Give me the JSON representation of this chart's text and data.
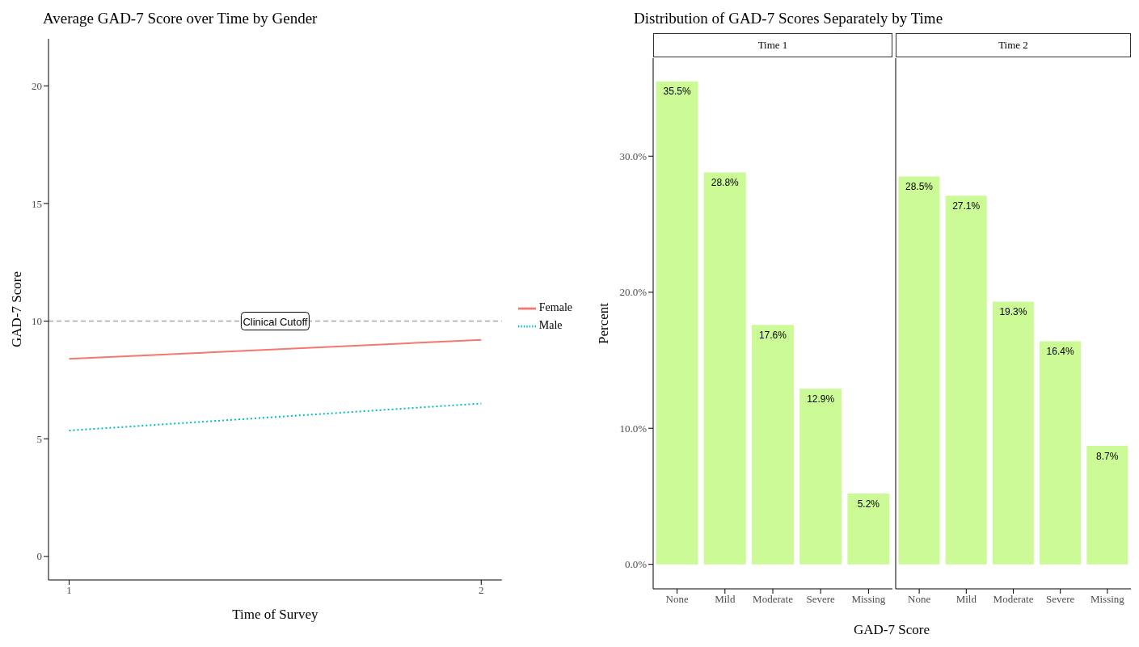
{
  "chart_data": [
    {
      "type": "line",
      "title": "Average GAD-7 Score over Time by Gender",
      "xlabel": "Time of Survey",
      "ylabel": "GAD-7 Score",
      "x": [
        1,
        2
      ],
      "series": [
        {
          "name": "Female",
          "color": "#f8766d",
          "values": [
            8.4,
            9.2
          ],
          "line_style": "solid"
        },
        {
          "name": "Male",
          "color": "#00bfc4",
          "values": [
            5.35,
            6.5
          ],
          "line_style": "dotted"
        }
      ],
      "xlim": [
        0.95,
        2.05
      ],
      "xticks": [
        1,
        2
      ],
      "ylim": [
        -1,
        22
      ],
      "yticks": [
        0,
        5,
        10,
        15,
        20
      ],
      "ref_lines": [
        {
          "axis": "y",
          "value": 10,
          "label": "Clinical Cutoff",
          "color": "#a6a6a6",
          "line_style": "dashed"
        }
      ],
      "grid": false,
      "legend": "right",
      "marker": "none"
    },
    {
      "type": "bar",
      "title": "Distribution of GAD-7 Scores Separately by Time",
      "subtitle": "Time 1",
      "xlabel": "GAD-7 Score",
      "ylabel": "Percent",
      "categories": [
        "None",
        "Mild",
        "Moderate",
        "Severe",
        "Missing"
      ],
      "values": [
        35.5,
        28.8,
        17.6,
        12.9,
        5.2
      ],
      "color": "#ccfa96",
      "value_labels": [
        "35.5%",
        "28.8%",
        "17.6%",
        "12.9%",
        "5.2%"
      ],
      "ylim": [
        -1.8,
        37.2
      ],
      "yticks": [
        {
          "value": 0,
          "label": "0.0%"
        },
        {
          "value": 10,
          "label": "10.0%"
        },
        {
          "value": 20,
          "label": "20.0%"
        },
        {
          "value": 30,
          "label": "30.0%"
        }
      ],
      "grid": false
    },
    {
      "type": "bar",
      "subtitle": "Time 2",
      "categories": [
        "None",
        "Mild",
        "Moderate",
        "Severe",
        "Missing"
      ],
      "values": [
        28.5,
        27.1,
        19.3,
        16.4,
        8.7
      ],
      "color": "#ccfa96",
      "value_labels": [
        "28.5%",
        "27.1%",
        "19.3%",
        "16.4%",
        "8.7%"
      ],
      "ylim": [
        -1.8,
        37.2
      ],
      "grid": false,
      "tick_labels": "x"
    }
  ]
}
